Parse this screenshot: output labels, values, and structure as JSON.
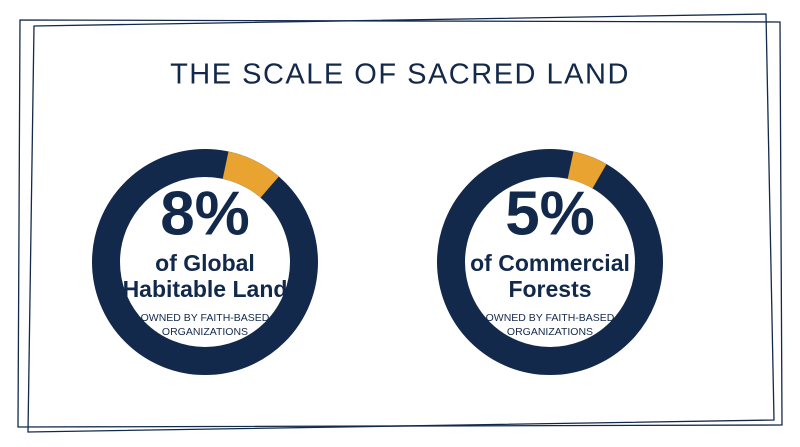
{
  "header": {
    "title": "THE SCALE OF SACRED LAND"
  },
  "chart_data": [
    {
      "type": "donut",
      "values": [
        8
      ],
      "value_labels": [
        "8%"
      ],
      "color": "#e8a330",
      "track_color": "#13294b",
      "label": [
        "of Global",
        "Habitable Land"
      ],
      "note": [
        "OWNED BY FAITH-BASED",
        "ORGANIZATIONS"
      ]
    },
    {
      "type": "donut",
      "values": [
        5
      ],
      "value_labels": [
        "5%"
      ],
      "color": "#e8a330",
      "track_color": "#13294b",
      "label": [
        "of Commercial",
        "Forests"
      ],
      "note": [
        "OWNED BY FAITH-BASED",
        "ORGANIZATIONS"
      ]
    }
  ]
}
